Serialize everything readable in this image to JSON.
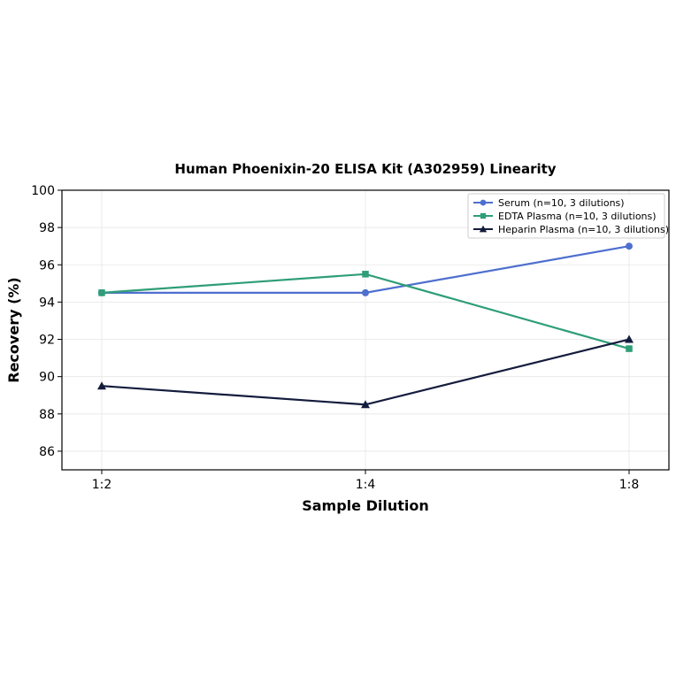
{
  "chart_data": {
    "type": "line",
    "title": "Human Phoenixin-20 ELISA Kit (A302959) Linearity",
    "xlabel": "Sample Dilution",
    "ylabel": "Recovery (%)",
    "categories": [
      "1:2",
      "1:4",
      "1:8"
    ],
    "ylim": [
      85,
      100
    ],
    "yticks": [
      86,
      88,
      90,
      92,
      94,
      96,
      98,
      100
    ],
    "grid": true,
    "legend_position": "top-right",
    "series": [
      {
        "name": "Serum (n=10, 3 dilutions)",
        "values": [
          94.5,
          94.5,
          97.0
        ],
        "color": "#4e6fcf",
        "marker": "circle"
      },
      {
        "name": "EDTA Plasma (n=10, 3 dilutions)",
        "values": [
          94.5,
          95.5,
          91.5
        ],
        "color": "#2e9e77",
        "marker": "square"
      },
      {
        "name": "Heparin Plasma (n=10, 3 dilutions)",
        "values": [
          89.5,
          88.5,
          92.0
        ],
        "color": "#141c3d",
        "marker": "triangle"
      }
    ]
  }
}
